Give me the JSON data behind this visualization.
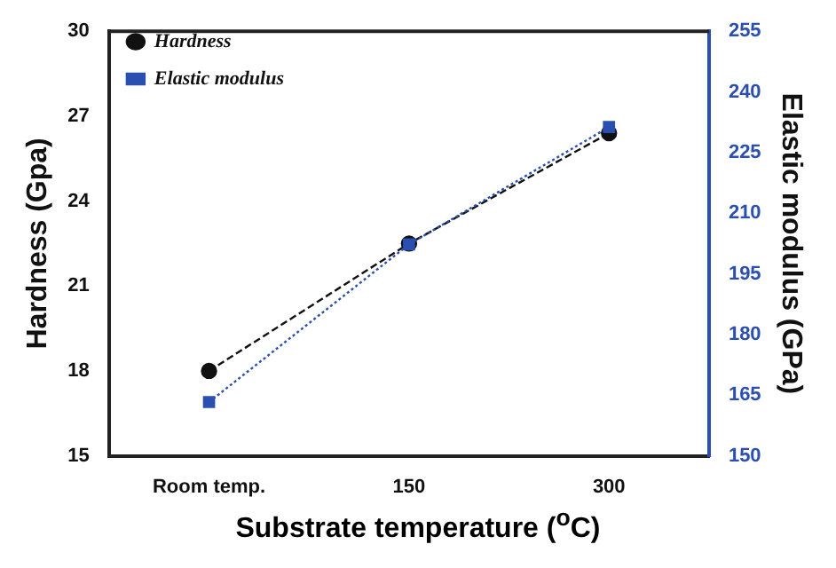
{
  "chart_data": {
    "type": "line",
    "xlabel": "Substrate temperature ($^{o}$C)",
    "ylabel": "Hardness (Gpa)",
    "y2label": "Elastic modulus (GPa)",
    "categories": [
      "Room temp.",
      "150",
      "300"
    ],
    "series": [
      {
        "name": "Hardness",
        "color": "#111111",
        "marker": "circle",
        "line_style": "dashed",
        "values": [
          18.0,
          22.5,
          26.4
        ]
      },
      {
        "name": "Elastic modulus",
        "color": "#2a4fb0",
        "marker": "square",
        "line_style": "dotted",
        "axis": "y2",
        "values": [
          163.3,
          202.3,
          231.3
        ]
      }
    ],
    "ylim": [
      15,
      30
    ],
    "yticks": [
      15,
      18,
      21,
      24,
      27,
      30
    ],
    "y2lim": [
      150,
      255
    ],
    "y2ticks": [
      150,
      165,
      180,
      195,
      210,
      225,
      240,
      255
    ],
    "grid": false,
    "legend": "top left"
  }
}
